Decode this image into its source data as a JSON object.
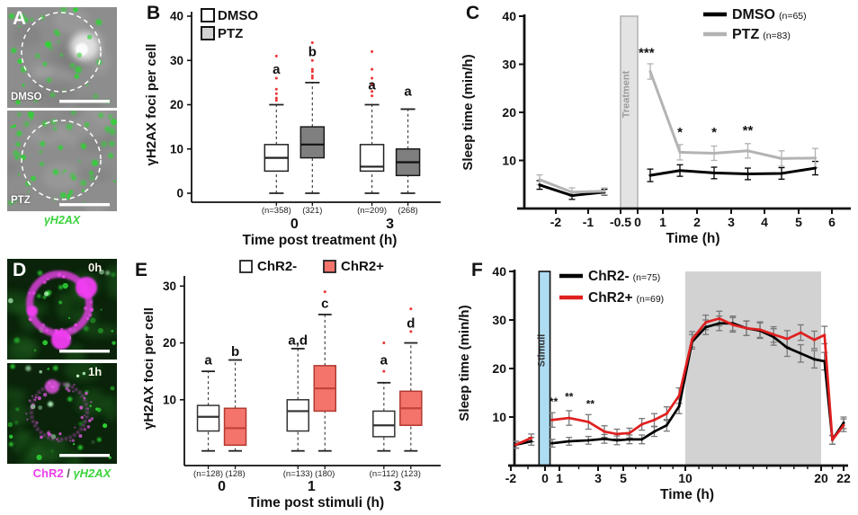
{
  "panel_A": {
    "label": "A",
    "images": [
      {
        "tag": "DMSO"
      },
      {
        "tag": "PTZ"
      }
    ],
    "caption": "γH2AX",
    "caption_color": "#3bd33b"
  },
  "panel_B": {
    "label": "B"
  },
  "panel_C": {
    "label": "C"
  },
  "panel_D": {
    "label": "D",
    "images": [
      {
        "tag": "0h"
      },
      {
        "tag": "1h"
      }
    ],
    "caption_parts": [
      {
        "text": "ChR2",
        "color": "#e93fe9",
        "italic": false
      },
      {
        "text": " / ",
        "color": "#555555",
        "italic": false
      },
      {
        "text": "γH2AX",
        "color": "#3bd33b",
        "italic": true
      }
    ]
  },
  "panel_E": {
    "label": "E"
  },
  "panel_F": {
    "label": "F"
  },
  "colors": {
    "dmso_line": "#000000",
    "ptz_line": "#b3b3b3",
    "chr2neg_line": "#000000",
    "chr2pos_line": "#e01f1f",
    "ptz_box": "#7f7f7f",
    "chr2pos_box": "#f4746c",
    "outlier": "#ee3333",
    "treatment_band": "#e3e3e3",
    "stimuli_band": "#aedcf2",
    "night_band": "#d2d2d2",
    "micro_green": "#2fd334",
    "micro_magenta": "#e93fe9"
  },
  "chart_data": [
    {
      "id": "B",
      "type": "boxplot",
      "ylabel": "γH2AX foci per cell",
      "xlabel": "Time post treatment (h)",
      "ylim": [
        0,
        40
      ],
      "yticks": [
        0,
        10,
        20,
        30,
        40
      ],
      "legend": {
        "position": "top-left",
        "items": [
          {
            "label": "DMSO",
            "fill": "#ffffff"
          },
          {
            "label": "PTZ",
            "fill": "#d2d2d2"
          }
        ]
      },
      "series_styles": {
        "DMSO": {
          "fill": "#ffffff",
          "stroke": "#222222",
          "median": "#222222"
        },
        "PTZ": {
          "fill": "#7f7f7f",
          "stroke": "#1a1a1a",
          "median": "#111111"
        }
      },
      "groups": [
        {
          "label": "0",
          "boxes": [
            {
              "series": "DMSO",
              "n_label": "(n=358)",
              "sig_letter": "a",
              "letter_y": 28,
              "whisker_low": 0,
              "q1": 5,
              "median": 8,
              "q3": 11,
              "whisker_high": 20,
              "outliers": [
                21,
                21.5,
                22.5,
                23.5,
                26,
                31
              ]
            },
            {
              "series": "PTZ",
              "n_label": "(321)",
              "sig_letter": "b",
              "letter_y": 32,
              "whisker_low": 0,
              "q1": 8,
              "median": 11,
              "q3": 15,
              "whisker_high": 25,
              "outliers": [
                26,
                26.5,
                27.5,
                28,
                30,
                34
              ]
            }
          ]
        },
        {
          "label": "3",
          "boxes": [
            {
              "series": "DMSO",
              "n_label": "(n=209)",
              "sig_letter": "a",
              "letter_y": 24.5,
              "whisker_low": 0,
              "q1": 5,
              "median": 6,
              "q3": 11,
              "whisker_high": 20,
              "outliers": [
                22,
                23,
                24.5,
                26,
                28,
                32
              ]
            },
            {
              "series": "PTZ",
              "n_label": "(268)",
              "sig_letter": "a",
              "letter_y": 23,
              "whisker_low": 0,
              "q1": 4,
              "median": 7,
              "q3": 10,
              "whisker_high": 19,
              "outliers": []
            }
          ]
        }
      ]
    },
    {
      "id": "C",
      "type": "line",
      "ylabel": "Sleep time (min/h)",
      "xlabel": "Time (h)",
      "ylim": [
        0,
        40
      ],
      "yticks": [
        10,
        20,
        30,
        40
      ],
      "xticks": [
        -2,
        -1,
        -0.5,
        0,
        1,
        2,
        3,
        4,
        5,
        6
      ],
      "bands": [
        {
          "label": "Treatment",
          "x0": -0.5,
          "x1": 0,
          "fill": "#e3e3e3",
          "stroke": "#b5b5b5",
          "label_color": "#9a9a9a"
        }
      ],
      "series": [
        {
          "name": "DMSO",
          "n_label": "(n=65)",
          "color": "#000000",
          "gap_after_index": 2,
          "x": [
            -2.5,
            -1.5,
            -0.75,
            0.5,
            1.5,
            2.5,
            3.5,
            4.5,
            5.5
          ],
          "y": [
            4.9,
            2.7,
            3.4,
            6.9,
            7.9,
            7.4,
            7.2,
            7.3,
            8.4
          ],
          "err": [
            0.9,
            0.8,
            0.6,
            1.3,
            1.2,
            1.2,
            1.2,
            1.2,
            1.4
          ]
        },
        {
          "name": "PTZ",
          "n_label": "(n=83)",
          "color": "#b3b3b3",
          "gap_after_index": 2,
          "x": [
            -2.5,
            -1.5,
            -0.75,
            0.5,
            1.5,
            2.5,
            3.5,
            4.5,
            5.5
          ],
          "y": [
            6.0,
            3.4,
            3.6,
            28.5,
            11.7,
            11.5,
            12.0,
            10.4,
            10.5
          ],
          "err": [
            1.0,
            0.9,
            0.7,
            1.6,
            1.6,
            1.5,
            1.5,
            1.6,
            2.0
          ]
        }
      ],
      "significance": [
        {
          "x": 0.35,
          "y": 31.5,
          "text": "***"
        },
        {
          "x": 1.5,
          "y": 15.0,
          "text": "*"
        },
        {
          "x": 2.5,
          "y": 15.0,
          "text": "*"
        },
        {
          "x": 3.5,
          "y": 15.3,
          "text": "**"
        }
      ],
      "legend": {
        "position": "top-right"
      }
    },
    {
      "id": "E",
      "type": "boxplot",
      "ylabel": "γH2AX foci per cell",
      "xlabel": "Time post stimuli (h)",
      "ylim": [
        0,
        31
      ],
      "yticks": [
        10,
        20,
        30
      ],
      "legend": {
        "position": "top-center",
        "items": [
          {
            "label": "ChR2-",
            "fill": "#ffffff"
          },
          {
            "label": "ChR2+",
            "fill": "#f4746c"
          }
        ]
      },
      "series_styles": {
        "ChR2-": {
          "fill": "#ffffff",
          "stroke": "#333333",
          "median": "#333333"
        },
        "ChR2+": {
          "fill": "#f4746c",
          "stroke": "#b03a30",
          "median": "#c3443a"
        }
      },
      "groups": [
        {
          "label": "0",
          "boxes": [
            {
              "series": "ChR2-",
              "n_label": "(n=128)",
              "sig_letter": "a",
              "letter_y": 17,
              "whisker_low": 1,
              "q1": 4.5,
              "median": 7,
              "q3": 9,
              "whisker_high": 15,
              "outliers": []
            },
            {
              "series": "ChR2+",
              "n_label": "(128)",
              "sig_letter": "b",
              "letter_y": 18.5,
              "whisker_low": 1,
              "q1": 2,
              "median": 5,
              "q3": 8.5,
              "whisker_high": 17,
              "outliers": []
            }
          ]
        },
        {
          "label": "1",
          "boxes": [
            {
              "series": "ChR2-",
              "n_label": "(n=133)",
              "sig_letter": "a,d",
              "letter_y": 20.5,
              "whisker_low": 1,
              "q1": 4.5,
              "median": 8,
              "q3": 10,
              "whisker_high": 19,
              "outliers": []
            },
            {
              "series": "ChR2+",
              "n_label": "(180)",
              "sig_letter": "c",
              "letter_y": 27,
              "whisker_low": 1,
              "q1": 8,
              "median": 12,
              "q3": 16,
              "whisker_high": 25,
              "outliers": [
                29
              ]
            }
          ]
        },
        {
          "label": "3",
          "boxes": [
            {
              "series": "ChR2-",
              "n_label": "(n=112)",
              "sig_letter": "a",
              "letter_y": 17,
              "whisker_low": 1,
              "q1": 3.5,
              "median": 5.5,
              "q3": 8,
              "whisker_high": 13,
              "outliers": [
                15,
                20
              ]
            },
            {
              "series": "ChR2+",
              "n_label": "(123)",
              "sig_letter": "d",
              "letter_y": 23.5,
              "whisker_low": 1,
              "q1": 5.5,
              "median": 8.5,
              "q3": 11.5,
              "whisker_high": 20,
              "outliers": [
                22,
                26
              ]
            }
          ]
        }
      ]
    },
    {
      "id": "F",
      "type": "line",
      "ylabel": "Sleep time (min/h)",
      "xlabel": "Time (h)",
      "ylim": [
        0,
        40
      ],
      "yticks": [
        10,
        20,
        30,
        40
      ],
      "xticks": [
        -2,
        0,
        1,
        3,
        5,
        10,
        20,
        22
      ],
      "minor_ticks": {
        "step": 1,
        "from": -2,
        "to": 22
      },
      "err_color": "#787878",
      "bands": [
        {
          "label": "Stimuli",
          "x0": -0.35,
          "x1": 0.35,
          "fill": "#aedcf2",
          "stroke": "#111111",
          "label_color": "#333333"
        },
        {
          "label": "",
          "x0": 10,
          "x1": 20,
          "fill": "#d2d2d2"
        }
      ],
      "series": [
        {
          "name": "ChR2-",
          "n_label": "(n=75)",
          "color": "#000000",
          "gap_after_index": 1,
          "x": [
            -1.7,
            -0.8,
            0.5,
            1.5,
            2.5,
            3.5,
            4.5,
            5.5,
            6.5,
            7.5,
            8.5,
            9.5,
            10.5,
            11.5,
            12.5,
            13.5,
            14.5,
            15.5,
            16.5,
            17.5,
            18.5,
            19.5,
            20.3,
            21,
            22
          ],
          "y": [
            4.3,
            5.0,
            4.6,
            5.0,
            5.2,
            5.5,
            5.2,
            5.4,
            5.4,
            7.0,
            8.3,
            12.2,
            25.5,
            28.5,
            29.3,
            29.3,
            28.3,
            27.8,
            26.5,
            24.3,
            23.1,
            21.9,
            21.5,
            5.3,
            8.8
          ],
          "err": [
            0.7,
            0.8,
            0.8,
            0.8,
            0.8,
            0.9,
            0.9,
            0.9,
            0.9,
            1.0,
            1.2,
            1.5,
            1.5,
            1.5,
            1.5,
            1.5,
            1.5,
            1.6,
            1.7,
            1.8,
            1.8,
            1.8,
            1.8,
            0.9,
            1.2
          ]
        },
        {
          "name": "ChR2+",
          "n_label": "(n=69)",
          "color": "#e01f1f",
          "gap_after_index": 1,
          "x": [
            -1.7,
            -0.8,
            0.5,
            1.5,
            2.5,
            3.5,
            4.5,
            5.5,
            6.5,
            7.5,
            8.5,
            9.5,
            10.5,
            11.5,
            12.5,
            13.5,
            14.5,
            15.5,
            16.5,
            17.5,
            18.5,
            19.5,
            20.3,
            21,
            22
          ],
          "y": [
            4.3,
            5.7,
            9.4,
            9.8,
            9.0,
            7.0,
            6.5,
            6.7,
            8.5,
            9.4,
            10.7,
            14.4,
            26.0,
            29.5,
            30.3,
            29.0,
            28.3,
            28.0,
            27.0,
            26.1,
            27.4,
            25.9,
            26.9,
            5.3,
            8.3
          ],
          "err": [
            0.7,
            0.8,
            1.5,
            1.5,
            1.5,
            1.2,
            1.0,
            1.0,
            1.2,
            1.3,
            1.4,
            1.6,
            1.6,
            1.5,
            1.5,
            1.5,
            1.5,
            1.6,
            1.6,
            1.7,
            1.6,
            1.8,
            1.8,
            0.9,
            1.3
          ]
        }
      ],
      "significance": [
        {
          "x": 0.6,
          "y": 12.4,
          "text": "**"
        },
        {
          "x": 1.5,
          "y": 13.4,
          "text": "**"
        },
        {
          "x": 2.6,
          "y": 11.9,
          "text": "**"
        }
      ],
      "legend": {
        "position": "top-left"
      }
    }
  ]
}
